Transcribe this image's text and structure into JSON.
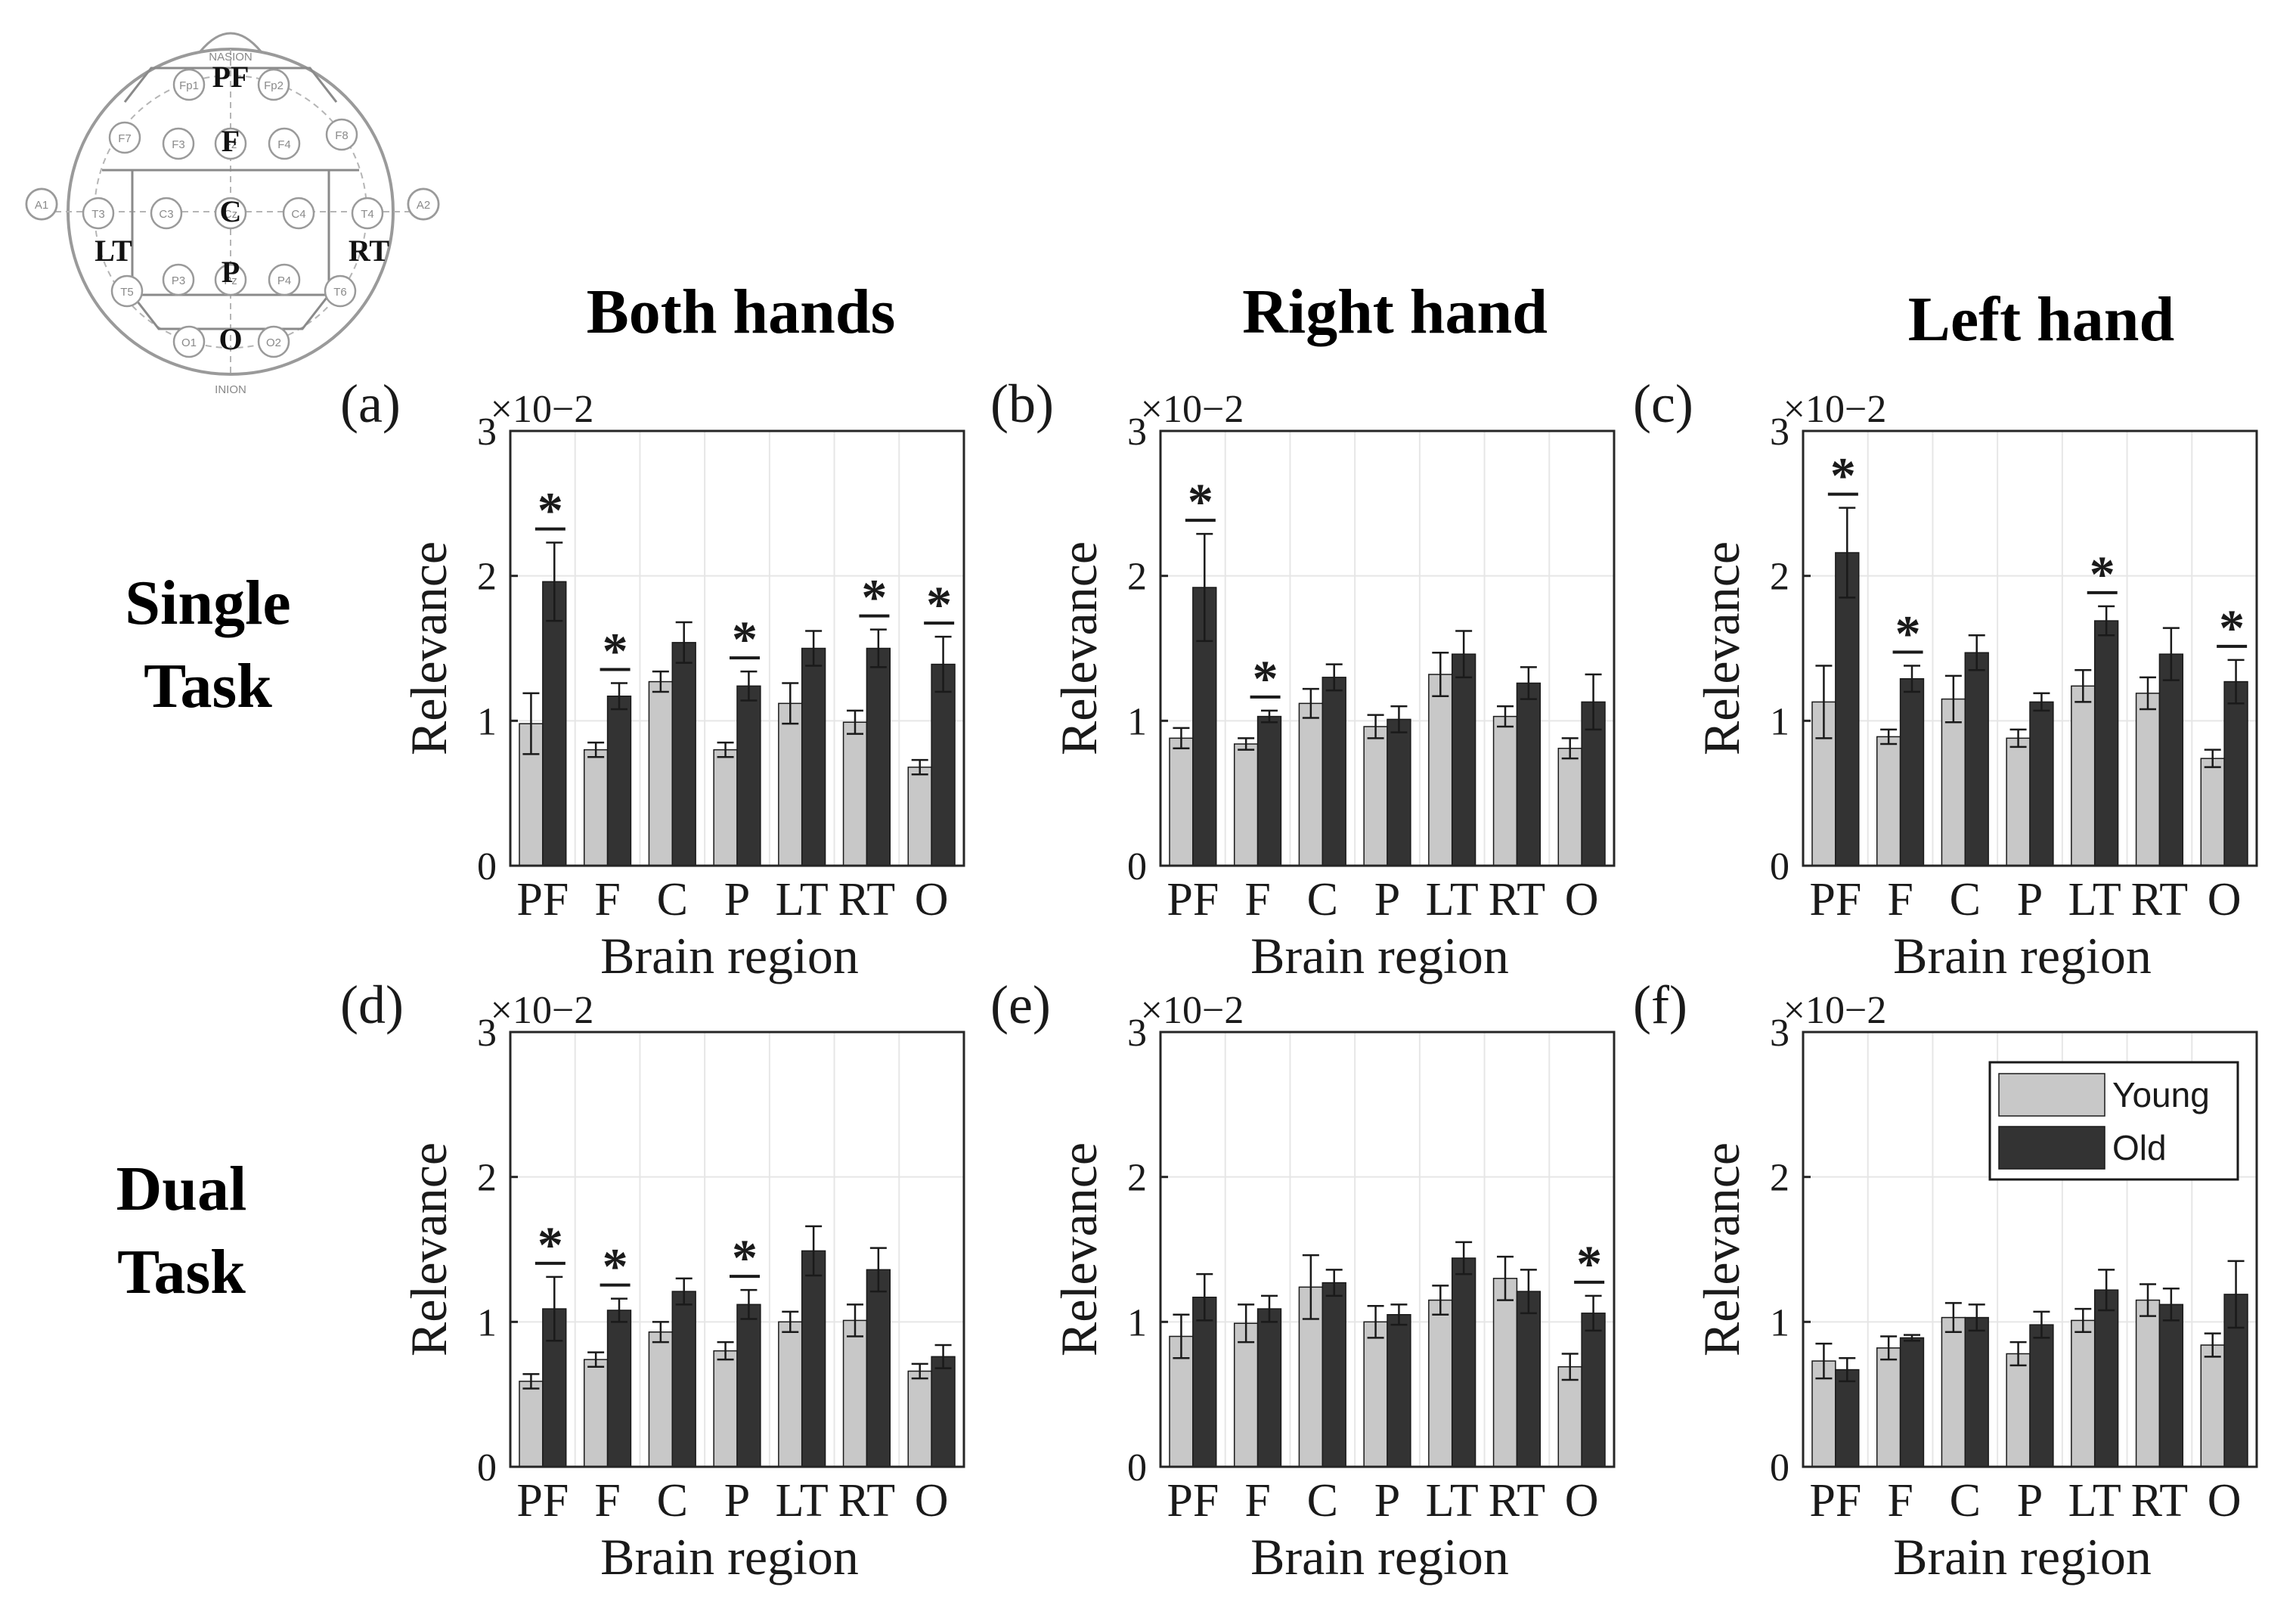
{
  "column_titles": [
    "Both hands",
    "Right hand",
    "Left hand"
  ],
  "row_titles": [
    [
      "Single",
      "Task"
    ],
    [
      "Dual",
      "Task"
    ]
  ],
  "electrode_map": {
    "top_label": "NASION",
    "bottom_label": "INION",
    "regions": [
      "PF",
      "F",
      "C",
      "P",
      "O",
      "LT",
      "RT"
    ],
    "electrodes": [
      "Fp1",
      "Fp2",
      "F7",
      "F3",
      "Fz",
      "F4",
      "F8",
      "A1",
      "T3",
      "C3",
      "Cz",
      "C4",
      "T4",
      "A2",
      "T5",
      "P3",
      "Pz",
      "P4",
      "T6",
      "O1",
      "O2"
    ]
  },
  "legend": {
    "items": [
      "Young",
      "Old"
    ]
  },
  "colors": {
    "young": "#c8c8c8",
    "old": "#333333",
    "grid": "#e6e6e6",
    "axis": "#262626"
  },
  "chart_data": [
    {
      "panel": "(a)",
      "type": "bar",
      "categories": [
        "PF",
        "F",
        "C",
        "P",
        "LT",
        "RT",
        "O"
      ],
      "xlabel": "Brain region",
      "ylabel": "Relevance",
      "scale_label": "×10−2",
      "yticks": [
        "0",
        "1",
        "2",
        "3"
      ],
      "ylim": [
        0,
        3
      ],
      "series": [
        {
          "name": "Young",
          "values": [
            0.98,
            0.8,
            1.27,
            0.8,
            1.12,
            0.99,
            0.68
          ],
          "errors": [
            0.21,
            0.05,
            0.07,
            0.05,
            0.14,
            0.08,
            0.05
          ]
        },
        {
          "name": "Old",
          "values": [
            1.96,
            1.17,
            1.54,
            1.24,
            1.5,
            1.5,
            1.39
          ],
          "errors": [
            0.27,
            0.09,
            0.14,
            0.1,
            0.12,
            0.13,
            0.19
          ]
        }
      ],
      "significant": [
        true,
        true,
        false,
        true,
        false,
        true,
        true
      ]
    },
    {
      "panel": "(b)",
      "type": "bar",
      "categories": [
        "PF",
        "F",
        "C",
        "P",
        "LT",
        "RT",
        "O"
      ],
      "xlabel": "Brain region",
      "ylabel": "Relevance",
      "scale_label": "×10−2",
      "yticks": [
        "0",
        "1",
        "2",
        "3"
      ],
      "ylim": [
        0,
        3
      ],
      "series": [
        {
          "name": "Young",
          "values": [
            0.88,
            0.84,
            1.12,
            0.96,
            1.32,
            1.03,
            0.81
          ],
          "errors": [
            0.07,
            0.04,
            0.1,
            0.08,
            0.15,
            0.07,
            0.07
          ]
        },
        {
          "name": "Old",
          "values": [
            1.92,
            1.03,
            1.3,
            1.01,
            1.46,
            1.26,
            1.13
          ],
          "errors": [
            0.37,
            0.04,
            0.09,
            0.09,
            0.16,
            0.11,
            0.19
          ]
        }
      ],
      "significant": [
        true,
        true,
        false,
        false,
        false,
        false,
        false
      ]
    },
    {
      "panel": "(c)",
      "type": "bar",
      "categories": [
        "PF",
        "F",
        "C",
        "P",
        "LT",
        "RT",
        "O"
      ],
      "xlabel": "Brain region",
      "ylabel": "Relevance",
      "scale_label": "×10−2",
      "yticks": [
        "0",
        "1",
        "2",
        "3"
      ],
      "ylim": [
        0,
        3
      ],
      "series": [
        {
          "name": "Young",
          "values": [
            1.13,
            0.89,
            1.15,
            0.88,
            1.24,
            1.19,
            0.74
          ],
          "errors": [
            0.25,
            0.05,
            0.16,
            0.06,
            0.11,
            0.11,
            0.06
          ]
        },
        {
          "name": "Old",
          "values": [
            2.16,
            1.29,
            1.47,
            1.13,
            1.69,
            1.46,
            1.27
          ],
          "errors": [
            0.31,
            0.09,
            0.12,
            0.06,
            0.1,
            0.18,
            0.15
          ]
        }
      ],
      "significant": [
        true,
        true,
        false,
        false,
        true,
        false,
        true
      ]
    },
    {
      "panel": "(d)",
      "type": "bar",
      "categories": [
        "PF",
        "F",
        "C",
        "P",
        "LT",
        "RT",
        "O"
      ],
      "xlabel": "Brain region",
      "ylabel": "Relevance",
      "scale_label": "×10−2",
      "yticks": [
        "0",
        "1",
        "2",
        "3"
      ],
      "ylim": [
        0,
        3
      ],
      "series": [
        {
          "name": "Young",
          "values": [
            0.59,
            0.74,
            0.93,
            0.8,
            1.0,
            1.01,
            0.66
          ],
          "errors": [
            0.05,
            0.05,
            0.07,
            0.06,
            0.07,
            0.11,
            0.05
          ]
        },
        {
          "name": "Old",
          "values": [
            1.09,
            1.08,
            1.21,
            1.12,
            1.49,
            1.36,
            0.76
          ],
          "errors": [
            0.22,
            0.08,
            0.09,
            0.1,
            0.17,
            0.15,
            0.08
          ]
        }
      ],
      "significant": [
        true,
        true,
        false,
        true,
        false,
        false,
        false
      ]
    },
    {
      "panel": "(e)",
      "type": "bar",
      "categories": [
        "PF",
        "F",
        "C",
        "P",
        "LT",
        "RT",
        "O"
      ],
      "xlabel": "Brain region",
      "ylabel": "Relevance",
      "scale_label": "×10−2",
      "yticks": [
        "0",
        "1",
        "2",
        "3"
      ],
      "ylim": [
        0,
        3
      ],
      "series": [
        {
          "name": "Young",
          "values": [
            0.9,
            0.99,
            1.24,
            1.0,
            1.15,
            1.3,
            0.69
          ],
          "errors": [
            0.15,
            0.13,
            0.22,
            0.11,
            0.1,
            0.15,
            0.09
          ]
        },
        {
          "name": "Old",
          "values": [
            1.17,
            1.09,
            1.27,
            1.05,
            1.44,
            1.21,
            1.06
          ],
          "errors": [
            0.16,
            0.09,
            0.09,
            0.07,
            0.11,
            0.15,
            0.12
          ]
        }
      ],
      "significant": [
        false,
        false,
        false,
        false,
        false,
        false,
        true
      ]
    },
    {
      "panel": "(f)",
      "type": "bar",
      "categories": [
        "PF",
        "F",
        "C",
        "P",
        "LT",
        "RT",
        "O"
      ],
      "xlabel": "Brain region",
      "ylabel": "Relevance",
      "scale_label": "×10−2",
      "yticks": [
        "0",
        "1",
        "2",
        "3"
      ],
      "ylim": [
        0,
        3
      ],
      "series": [
        {
          "name": "Young",
          "values": [
            0.73,
            0.82,
            1.03,
            0.78,
            1.01,
            1.15,
            0.84
          ],
          "errors": [
            0.12,
            0.08,
            0.1,
            0.08,
            0.08,
            0.11,
            0.08
          ]
        },
        {
          "name": "Old",
          "values": [
            0.67,
            0.89,
            1.03,
            0.98,
            1.22,
            1.12,
            1.19
          ],
          "errors": [
            0.08,
            0.02,
            0.09,
            0.09,
            0.14,
            0.11,
            0.23
          ]
        }
      ],
      "significant": [
        false,
        false,
        false,
        false,
        false,
        false,
        false
      ],
      "show_legend": true
    }
  ]
}
